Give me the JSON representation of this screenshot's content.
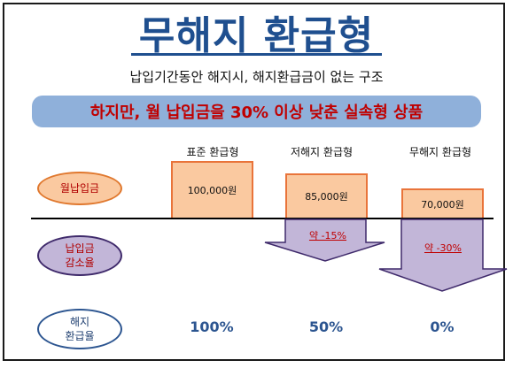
{
  "title": "무해지 환급형",
  "subtitle": "납입기간동안 해지시, 해지환급금이 없는 구조",
  "banner": "하지만, 월 납입금을 30% 이상 낮춘 실속형 상품",
  "row_labels": {
    "monthly_payment": "월납입금",
    "reduction_line1": "납입금",
    "reduction_line2": "감소율",
    "refund_line1": "해지",
    "refund_line2": "환급율"
  },
  "columns": [
    {
      "header": "표준 환급형",
      "payment": "100,000원",
      "reduction": "",
      "refund_rate": "100%"
    },
    {
      "header": "저해지 환급형",
      "payment": "85,000원",
      "reduction": "약 -15%",
      "refund_rate": "50%"
    },
    {
      "header": "무해지 환급형",
      "payment": "70,000원",
      "reduction": "약 -30%",
      "refund_rate": "0%"
    }
  ],
  "colors": {
    "title": "#1f4f8f",
    "banner_bg": "#8fb0da",
    "banner_text": "#c00000",
    "bar_fill": "#fac9a0",
    "bar_border": "#e9743a",
    "arrow_fill": "#c2b6d8",
    "arrow_border": "#3f2a6b",
    "rate_text": "#2c5590"
  }
}
